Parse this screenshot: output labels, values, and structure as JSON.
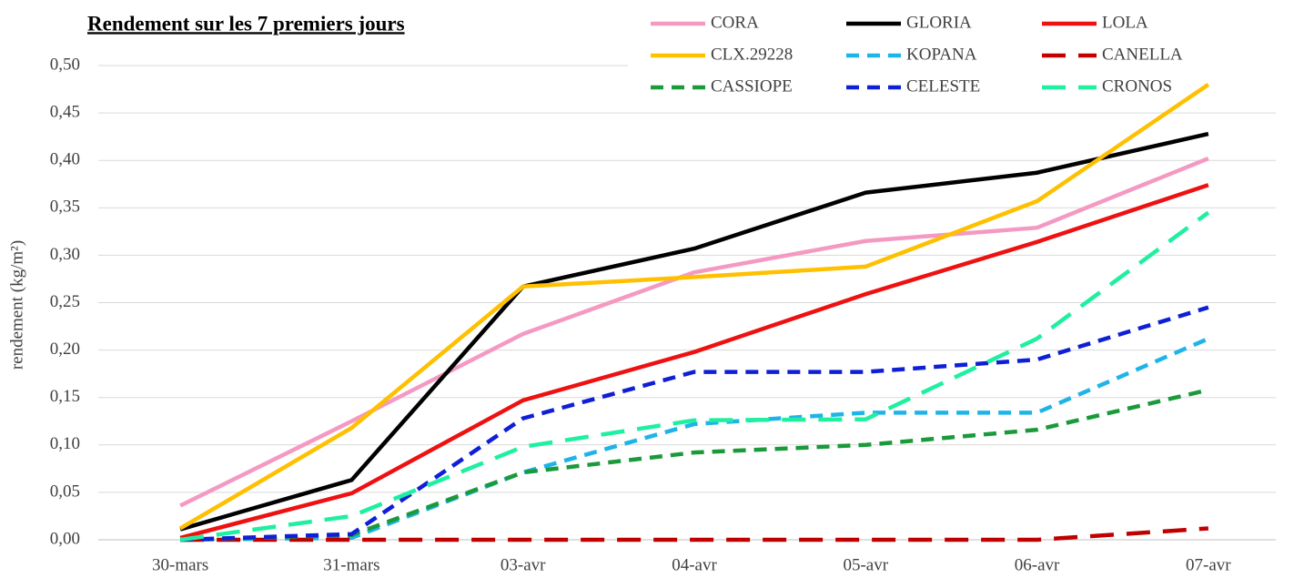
{
  "chart_data": {
    "type": "line",
    "title": "Rendement sur les 7 premiers  jours",
    "y_label": "rendement (kg/m²)",
    "categories": [
      "30-mars",
      "31-mars",
      "03-avr",
      "04-avr",
      "05-avr",
      "06-avr",
      "07-avr"
    ],
    "series": [
      {
        "name": "CORA",
        "color": "#f49ac2",
        "dash": "solid",
        "values": [
          0.036,
          0.125,
          0.217,
          0.282,
          0.315,
          0.329,
          0.402
        ]
      },
      {
        "name": "GLORIA",
        "color": "#000000",
        "dash": "solid",
        "values": [
          0.011,
          0.063,
          0.267,
          0.307,
          0.366,
          0.387,
          0.428
        ]
      },
      {
        "name": "LOLA",
        "color": "#ee1111",
        "dash": "solid",
        "values": [
          0.002,
          0.049,
          0.147,
          0.198,
          0.259,
          0.314,
          0.374
        ]
      },
      {
        "name": "CLX.29228",
        "color": "#ffc000",
        "dash": "solid",
        "values": [
          0.012,
          0.118,
          0.267,
          0.277,
          0.288,
          0.357,
          0.48
        ]
      },
      {
        "name": "KOPANA",
        "color": "#1fb4e8",
        "dash": "dashed",
        "values": [
          0,
          0.002,
          0.071,
          0.122,
          0.134,
          0.134,
          0.212
        ]
      },
      {
        "name": "CANELLA",
        "color": "#c00000",
        "dash": "long-dash",
        "values": [
          0,
          0,
          0,
          0,
          0,
          0,
          0.012
        ]
      },
      {
        "name": "CASSIOPE",
        "color": "#1a9a3a",
        "dash": "dashed",
        "values": [
          0,
          0.005,
          0.071,
          0.092,
          0.1,
          0.116,
          0.158
        ]
      },
      {
        "name": "CELESTE",
        "color": "#0f1fd6",
        "dash": "dashed",
        "values": [
          0,
          0.006,
          0.128,
          0.177,
          0.177,
          0.19,
          0.245
        ]
      },
      {
        "name": "CRONOS",
        "color": "#1ef0a0",
        "dash": "long-dash",
        "values": [
          0,
          0.025,
          0.098,
          0.126,
          0.127,
          0.212,
          0.345
        ]
      }
    ],
    "ylim": [
      0,
      0.5
    ],
    "yticks": [
      {
        "value": 0,
        "label": "0,00"
      },
      {
        "value": 0.05,
        "label": "0,05"
      },
      {
        "value": 0.1,
        "label": "0,10"
      },
      {
        "value": 0.15,
        "label": "0,15"
      },
      {
        "value": 0.2,
        "label": "0,20"
      },
      {
        "value": 0.25,
        "label": "0,25"
      },
      {
        "value": 0.3,
        "label": "0,30"
      },
      {
        "value": 0.35,
        "label": "0,35"
      },
      {
        "value": 0.4,
        "label": "0,40"
      },
      {
        "value": 0.45,
        "label": "0,45"
      },
      {
        "value": 0.5,
        "label": "0,50"
      }
    ],
    "grid": true,
    "legend": "top-right"
  }
}
